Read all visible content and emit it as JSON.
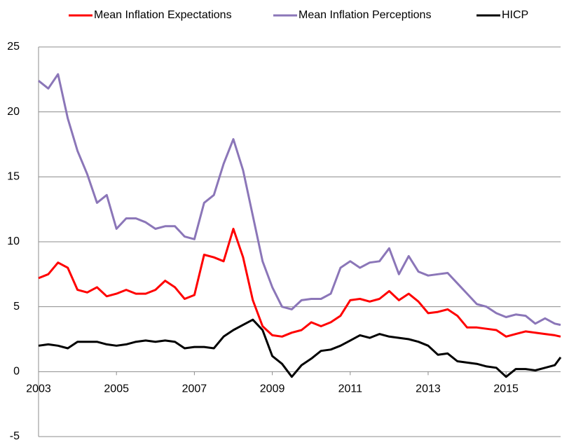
{
  "chart_data": {
    "type": "line",
    "x": [
      2003,
      2003.25,
      2003.5,
      2003.75,
      2004,
      2004.25,
      2004.5,
      2004.75,
      2005,
      2005.25,
      2005.5,
      2005.75,
      2006,
      2006.25,
      2006.5,
      2006.75,
      2007,
      2007.25,
      2007.5,
      2007.75,
      2008,
      2008.25,
      2008.5,
      2008.75,
      2009,
      2009.25,
      2009.5,
      2009.75,
      2010,
      2010.25,
      2010.5,
      2010.75,
      2011,
      2011.25,
      2011.5,
      2011.75,
      2012,
      2012.25,
      2012.5,
      2012.75,
      2013,
      2013.25,
      2013.5,
      2013.75,
      2014,
      2014.25,
      2014.5,
      2014.75,
      2015,
      2015.25,
      2015.5,
      2015.75,
      2016,
      2016.25,
      2016.4
    ],
    "series": [
      {
        "name": "Mean Inflation Expectations",
        "color": "#ff0000",
        "values": [
          7.2,
          7.5,
          8.4,
          8.0,
          6.3,
          6.1,
          6.5,
          5.8,
          6.0,
          6.3,
          6.0,
          6.0,
          6.3,
          7.0,
          6.5,
          5.6,
          5.9,
          9.0,
          8.8,
          8.5,
          11.0,
          8.8,
          5.5,
          3.5,
          2.8,
          2.7,
          3.0,
          3.2,
          3.8,
          3.5,
          3.8,
          4.3,
          5.5,
          5.6,
          5.4,
          5.6,
          6.2,
          5.5,
          6.0,
          5.4,
          4.5,
          4.6,
          4.8,
          4.3,
          3.4,
          3.4,
          3.3,
          3.2,
          2.7,
          2.9,
          3.1,
          3.0,
          2.9,
          2.8,
          2.7
        ]
      },
      {
        "name": "Mean Inflation Perceptions",
        "color": "#8b76b8",
        "values": [
          22.4,
          21.8,
          22.9,
          19.5,
          17.0,
          15.2,
          13.0,
          13.6,
          11.0,
          11.8,
          11.8,
          11.5,
          11.0,
          11.2,
          11.2,
          10.4,
          10.2,
          13.0,
          13.6,
          16.0,
          17.9,
          15.5,
          12.0,
          8.5,
          6.5,
          5.0,
          4.8,
          5.5,
          5.6,
          5.6,
          6.0,
          8.0,
          8.5,
          8.0,
          8.4,
          8.5,
          9.5,
          7.5,
          8.9,
          7.7,
          7.4,
          7.5,
          7.6,
          6.8,
          6.0,
          5.2,
          5.0,
          4.5,
          4.2,
          4.4,
          4.3,
          3.7,
          4.1,
          3.7,
          3.6
        ]
      },
      {
        "name": "HICP",
        "color": "#000000",
        "values": [
          2.0,
          2.1,
          2.0,
          1.8,
          2.3,
          2.3,
          2.3,
          2.1,
          2.0,
          2.1,
          2.3,
          2.4,
          2.3,
          2.4,
          2.3,
          1.8,
          1.9,
          1.9,
          1.8,
          2.7,
          3.2,
          3.6,
          4.0,
          3.2,
          1.2,
          0.6,
          -0.4,
          0.5,
          1.0,
          1.6,
          1.7,
          2.0,
          2.4,
          2.8,
          2.6,
          2.9,
          2.7,
          2.6,
          2.5,
          2.3,
          2.0,
          1.3,
          1.4,
          0.8,
          0.7,
          0.6,
          0.4,
          0.3,
          -0.4,
          0.2,
          0.2,
          0.1,
          0.3,
          0.5,
          1.1
        ]
      }
    ],
    "xlim": [
      2003,
      2016.4
    ],
    "xticks": [
      2003,
      2005,
      2007,
      2009,
      2011,
      2013,
      2015
    ],
    "ylim": [
      -5,
      25
    ],
    "yticks": [
      -5,
      0,
      5,
      10,
      15,
      20,
      25
    ],
    "grid": true,
    "legend": "top"
  }
}
